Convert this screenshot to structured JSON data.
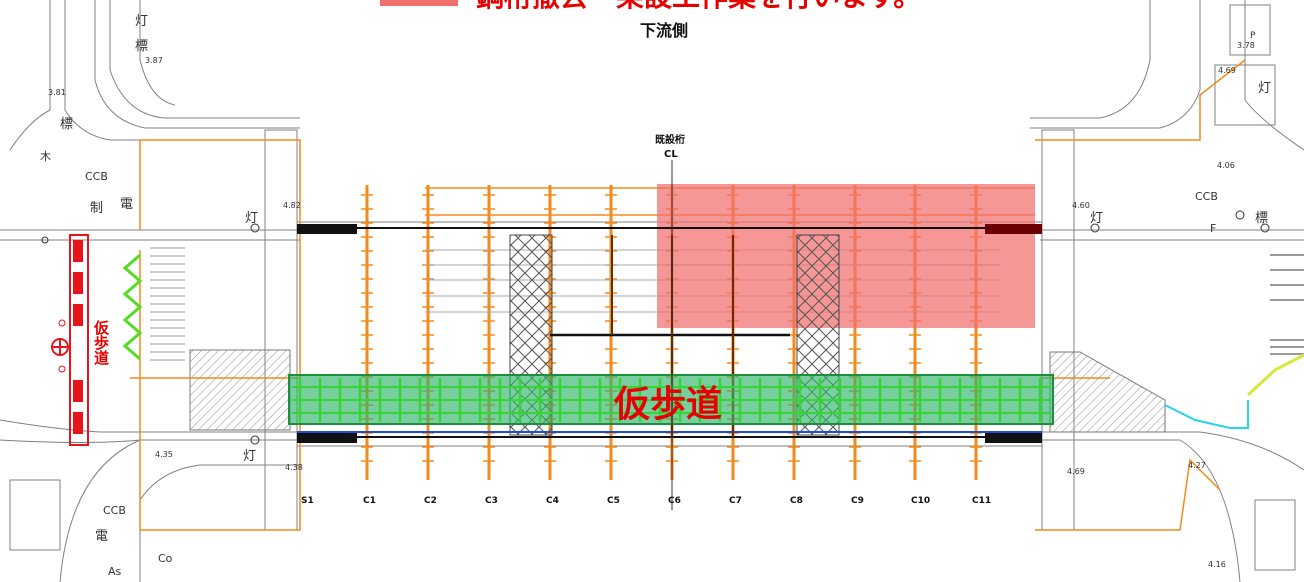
{
  "header": {
    "legend_text": "鋼桁撤去・架設工作業を行います。",
    "direction_label": "下流側"
  },
  "labels": {
    "walkway_main": "仮歩道",
    "walkway_side": "仮歩道",
    "existing_girder": "既設桁",
    "centerline": "CL",
    "lamp": "灯",
    "sign": "標",
    "ccb": "CCB",
    "pole": "電",
    "control": "制",
    "f_mark": "F",
    "p_mark": "P",
    "co": "Co",
    "as": "As",
    "tree": "木"
  },
  "elevations": [
    "3.87",
    "3.81",
    "3.78",
    "4.69",
    "4.06",
    "4.82",
    "4.60",
    "4.35",
    "4.38",
    "4.27",
    "4.69",
    "4.16"
  ],
  "girders": [
    "S1",
    "C1",
    "C2",
    "C3",
    "C4",
    "C5",
    "C6",
    "C7",
    "C8",
    "C9",
    "C10",
    "C11"
  ],
  "colors": {
    "work_zone": "#f26f6f",
    "walkway_fill": "#2fb36a",
    "walkway_grid": "#33d633",
    "scaffold": "#f28a1c",
    "label_red": "#e60000",
    "barrier": "#e8141c",
    "cyan_line": "#27d3e6",
    "yellow_line": "#d8e83a",
    "line_gray": "#707070"
  }
}
